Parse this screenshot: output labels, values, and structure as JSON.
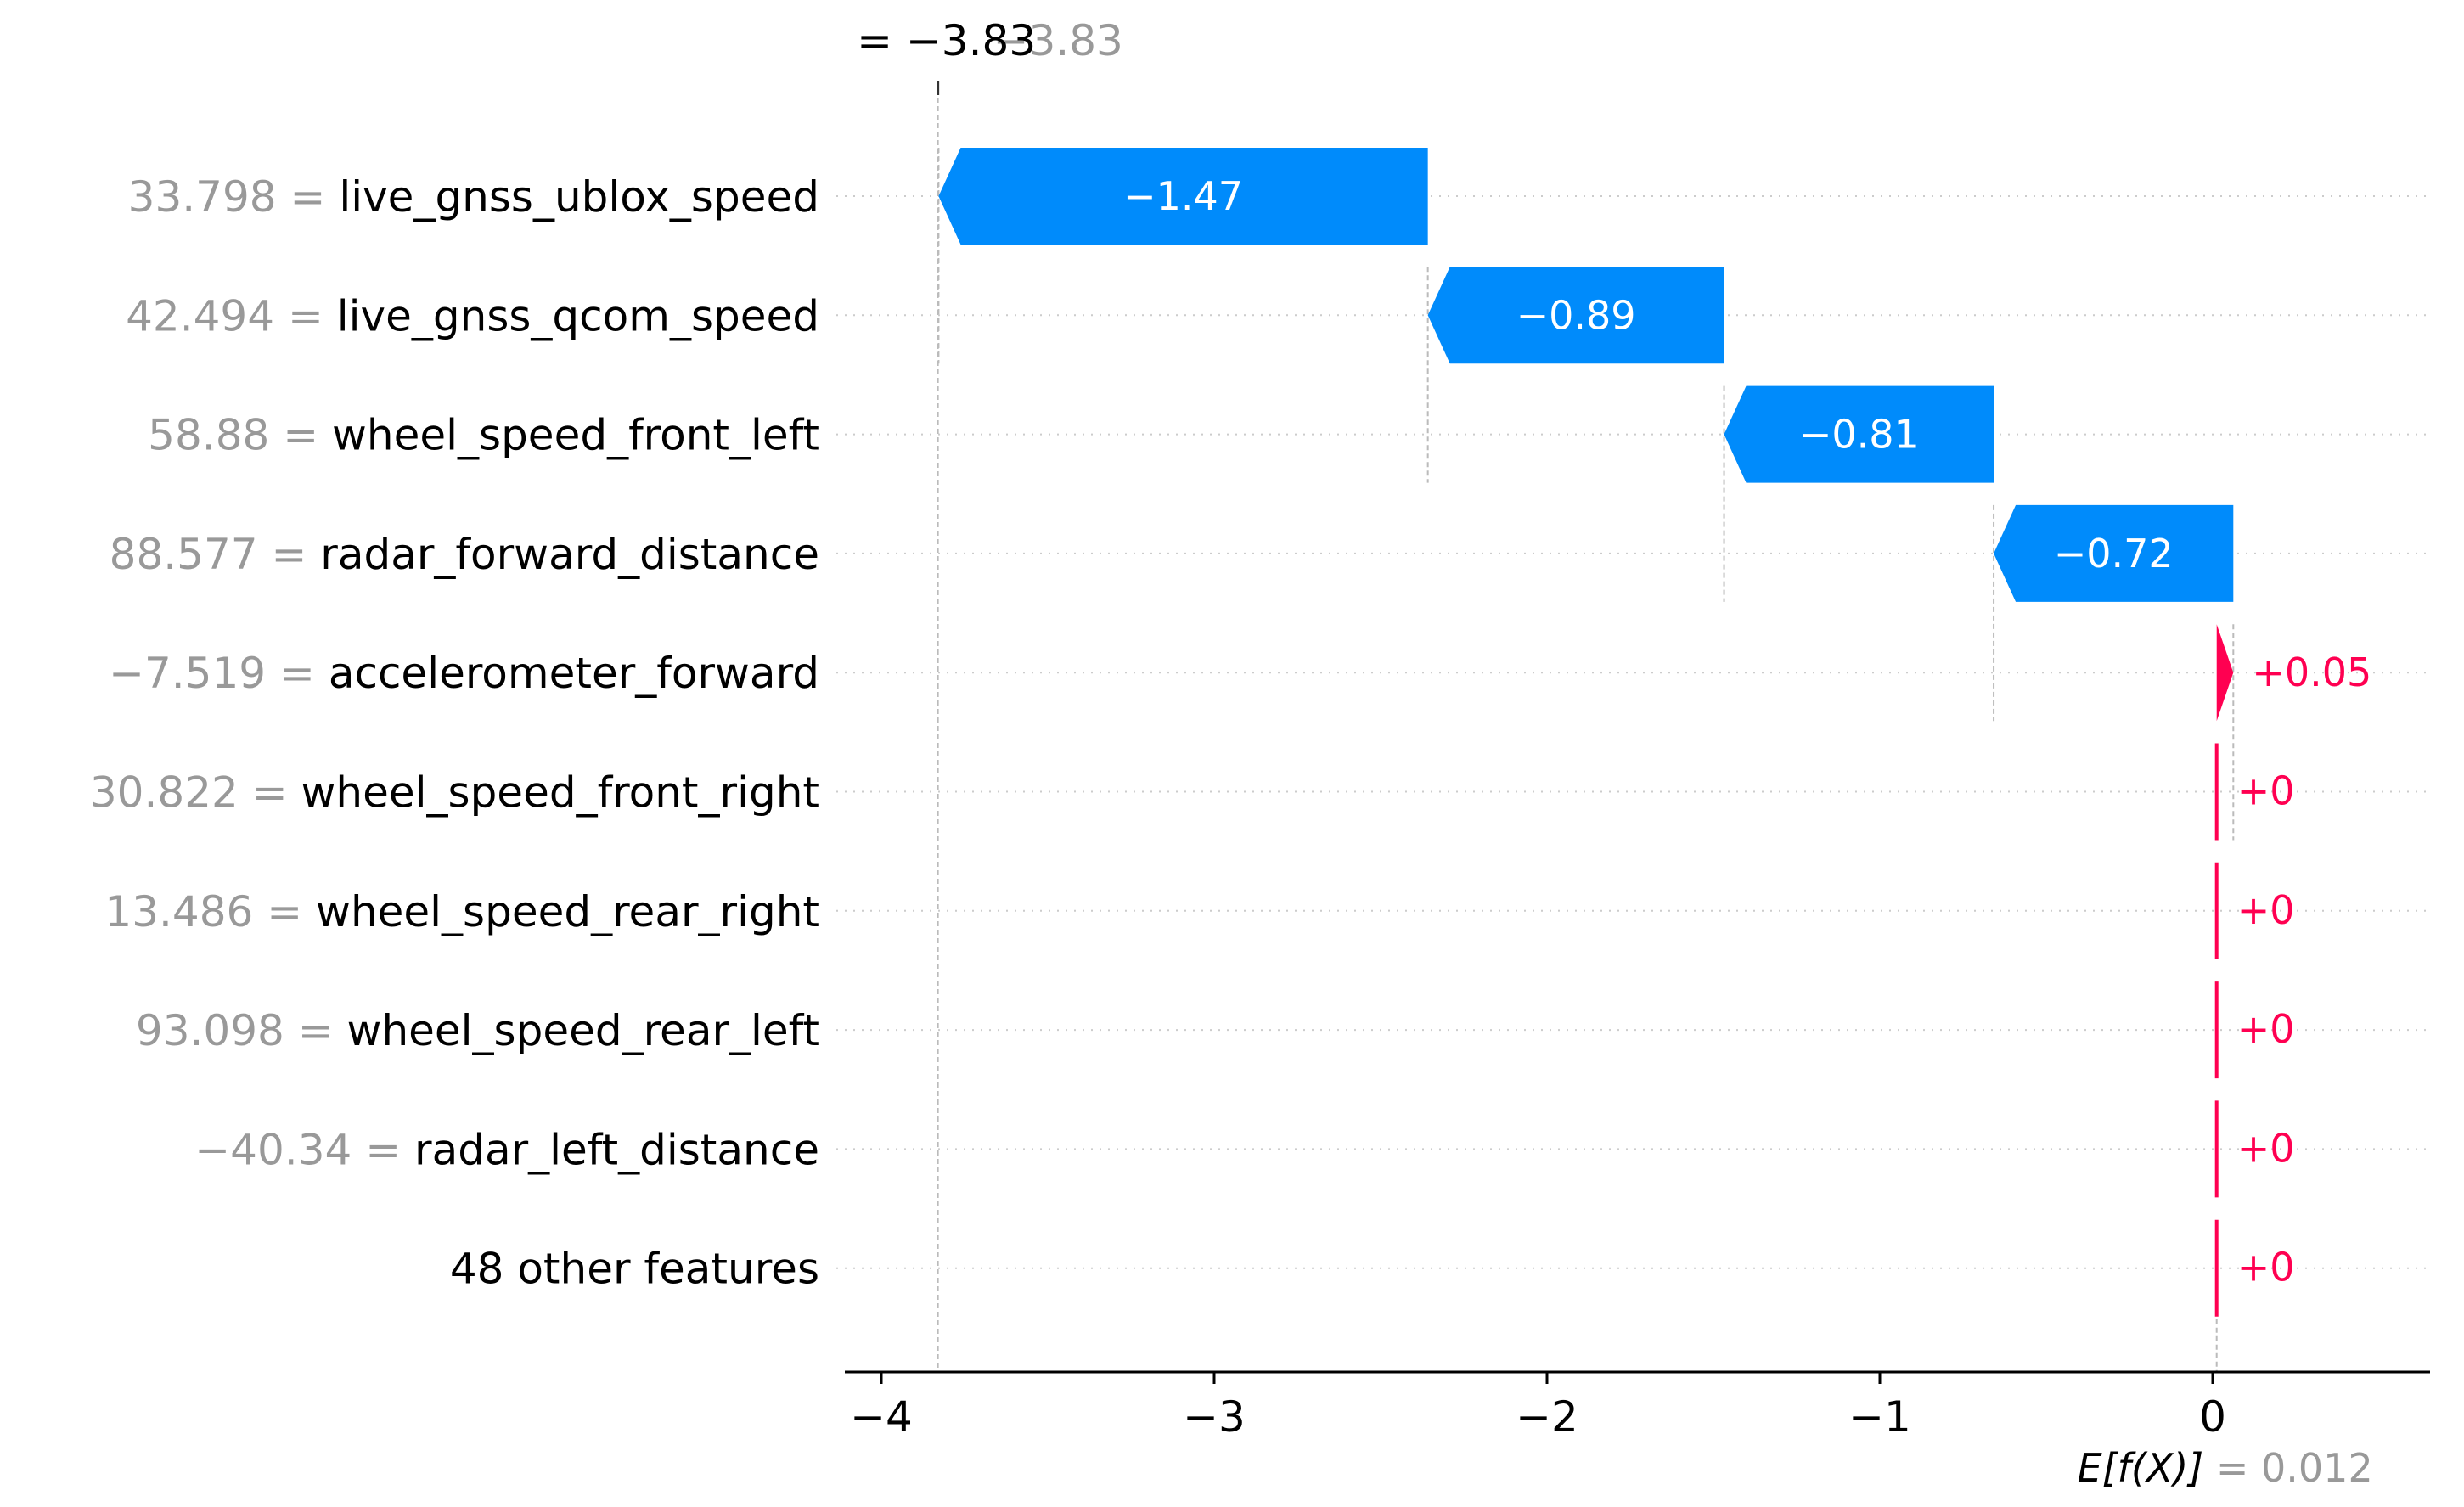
{
  "chart_data": {
    "type": "waterfall",
    "title": "",
    "xlabel": "",
    "ylabel": "",
    "xlim": [
      -4.2,
      0.7
    ],
    "x_ticks": [
      -4,
      -3,
      -2,
      -1,
      0
    ],
    "x_tick_labels": [
      "−4",
      "−3",
      "−2",
      "−1",
      "0"
    ],
    "grid": "dotted horizontal row guides",
    "base_value": 0.012,
    "base_label_prefix": "E[f(X)]",
    "base_label_value": "= 0.012",
    "output_value": -3.83,
    "output_label": "= −3.83",
    "output_label_ghost": "−3.83",
    "rows": [
      {
        "feature_value": "33.798 =",
        "feature": "live_gnss_ublox_speed",
        "value": -1.47,
        "label": "−1.47"
      },
      {
        "feature_value": "42.494 =",
        "feature": "live_gnss_qcom_speed",
        "value": -0.89,
        "label": "−0.89"
      },
      {
        "feature_value": "58.88 =",
        "feature": "wheel_speed_front_left",
        "value": -0.81,
        "label": "−0.81"
      },
      {
        "feature_value": "88.577 =",
        "feature": "radar_forward_distance",
        "value": -0.72,
        "label": "−0.72"
      },
      {
        "feature_value": "−7.519 =",
        "feature": "accelerometer_forward",
        "value": 0.05,
        "label": "+0.05"
      },
      {
        "feature_value": "30.822 =",
        "feature": "wheel_speed_front_right",
        "value": 0,
        "label": "+0"
      },
      {
        "feature_value": "13.486 =",
        "feature": "wheel_speed_rear_right",
        "value": 0,
        "label": "+0"
      },
      {
        "feature_value": "93.098 =",
        "feature": "wheel_speed_rear_left",
        "value": 0,
        "label": "+0"
      },
      {
        "feature_value": "−40.34 =",
        "feature": "radar_left_distance",
        "value": 0,
        "label": "+0"
      },
      {
        "feature_value": "",
        "feature": "48 other features",
        "value": 0,
        "label": "+0"
      }
    ],
    "colors": {
      "negative": "#008bfb",
      "positive": "#ff0051",
      "feature_value_text": "#999999",
      "feature_name_text": "#000000",
      "guide": "#bbbbbb"
    }
  }
}
